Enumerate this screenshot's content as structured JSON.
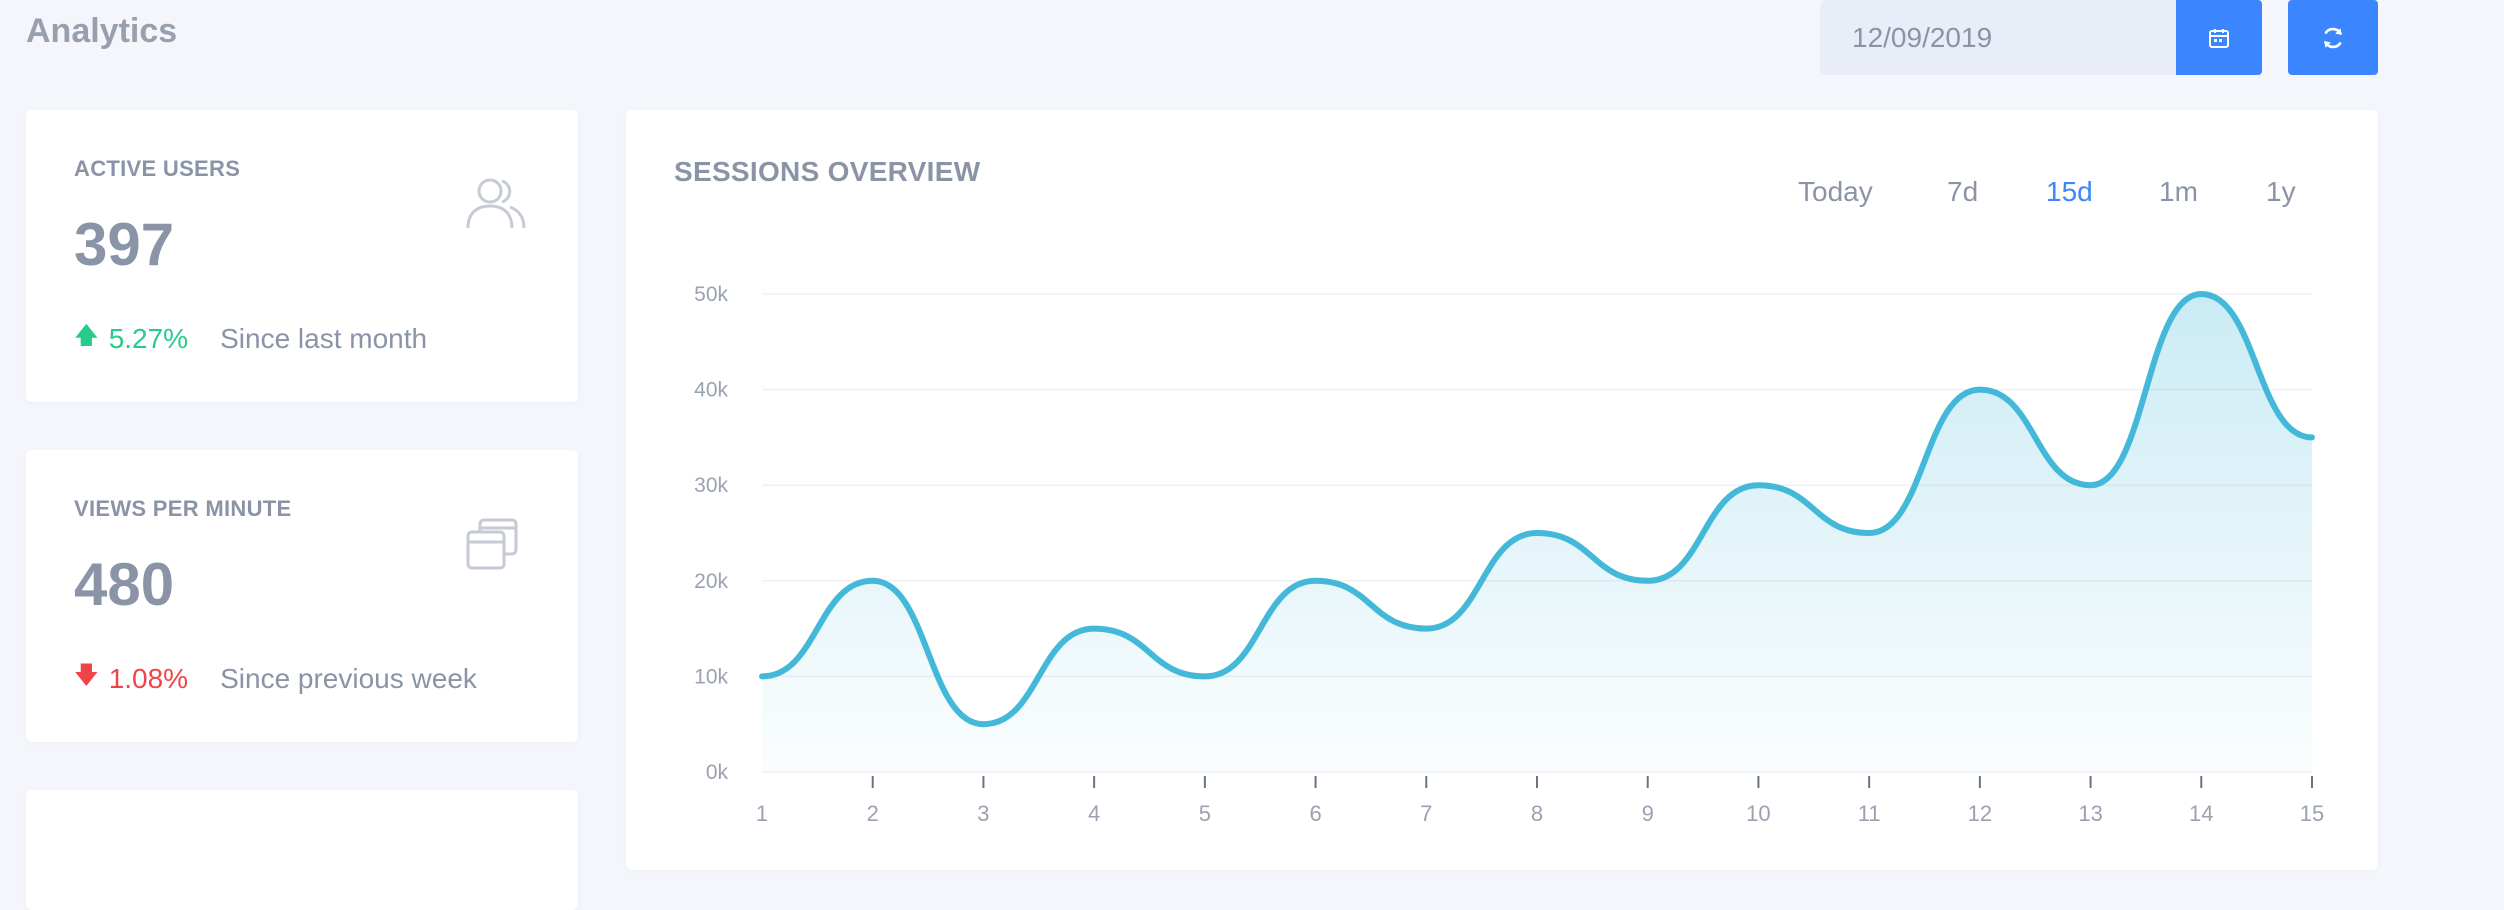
{
  "header": {
    "title": "Analytics",
    "date_value": "12/09/2019"
  },
  "icons": {
    "calendar": "calendar-icon",
    "refresh": "refresh-icon",
    "users": "users-icon",
    "windows": "windows-icon",
    "arrow_up": "arrow-up-icon",
    "arrow_down": "arrow-down-icon"
  },
  "stats": [
    {
      "title": "ACTIVE USERS",
      "value": "397",
      "change": "5.27%",
      "direction": "up",
      "since": "Since last month"
    },
    {
      "title": "VIEWS PER MINUTE",
      "value": "480",
      "change": "1.08%",
      "direction": "down",
      "since": "Since previous week"
    }
  ],
  "colors": {
    "accent": "#3b86ff",
    "line": "#44b8d9",
    "up": "#27cc8c",
    "down": "#f0444b"
  },
  "sessions": {
    "title": "SESSIONS OVERVIEW",
    "ranges": [
      "Today",
      "7d",
      "15d",
      "1m",
      "1y"
    ],
    "active_range": "15d"
  },
  "chart_data": {
    "type": "area",
    "title": "SESSIONS OVERVIEW",
    "x": [
      1,
      2,
      3,
      4,
      5,
      6,
      7,
      8,
      9,
      10,
      11,
      12,
      13,
      14,
      15
    ],
    "series": [
      {
        "values": [
          10000,
          20000,
          5000,
          15000,
          10000,
          20000,
          15000,
          25000,
          20000,
          30000,
          25000,
          40000,
          30000,
          50000,
          35000
        ]
      }
    ],
    "y_ticks": [
      "0k",
      "10k",
      "20k",
      "30k",
      "40k",
      "50k"
    ],
    "ylim": [
      0,
      50000
    ],
    "xlim": [
      1,
      15
    ],
    "grid": true,
    "legend": "none"
  }
}
